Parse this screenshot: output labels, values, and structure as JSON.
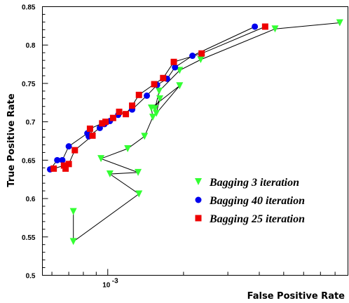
{
  "chart_data": {
    "type": "scatter",
    "xlabel": "False Positive Rate",
    "ylabel": "True Positive Rate",
    "xscale": "log",
    "xlim": [
      0.00055,
      0.009
    ],
    "ylim": [
      0.5,
      0.85
    ],
    "xticks": [
      {
        "value": 0.001,
        "label": "10"
      }
    ],
    "xtick_exponent": "-3",
    "yticks": [
      0.5,
      0.55,
      0.6,
      0.65,
      0.7,
      0.75,
      0.8,
      0.85
    ],
    "ytick_labels": [
      "0.5",
      "0.55",
      "0.6",
      "0.65",
      "0.7",
      "0.75",
      "0.8",
      "0.85"
    ],
    "grid": false,
    "legend_position": "bottom-right",
    "series": [
      {
        "name": "Bagging 3 iteration",
        "marker": "triangle-down",
        "color": "#33ff33",
        "connected": true,
        "points": [
          [
            0.00073,
            0.583
          ],
          [
            0.00073,
            0.544
          ],
          [
            0.00133,
            0.606
          ],
          [
            0.00102,
            0.632
          ],
          [
            0.00132,
            0.634
          ],
          [
            0.00094,
            0.652
          ],
          [
            0.0012,
            0.665
          ],
          [
            0.0014,
            0.681
          ],
          [
            0.00151,
            0.706
          ],
          [
            0.00149,
            0.718
          ],
          [
            0.00193,
            0.747
          ],
          [
            0.00156,
            0.711
          ],
          [
            0.00161,
            0.73
          ],
          [
            0.00154,
            0.717
          ],
          [
            0.0016,
            0.74
          ],
          [
            0.00193,
            0.767
          ],
          [
            0.00234,
            0.781
          ],
          [
            0.00462,
            0.821
          ],
          [
            0.00835,
            0.829
          ]
        ]
      },
      {
        "name": "Bagging 40 iteration",
        "marker": "circle",
        "color": "#0000ee",
        "connected": true,
        "points": [
          [
            0.00059,
            0.638
          ],
          [
            0.00063,
            0.65
          ],
          [
            0.00066,
            0.65
          ],
          [
            0.0007,
            0.668
          ],
          [
            0.00083,
            0.685
          ],
          [
            0.00084,
            0.681
          ],
          [
            0.00093,
            0.692
          ],
          [
            0.00097,
            0.697
          ],
          [
            0.00102,
            0.701
          ],
          [
            0.0011,
            0.709
          ],
          [
            0.00125,
            0.716
          ],
          [
            0.00143,
            0.734
          ],
          [
            0.00157,
            0.748
          ],
          [
            0.00172,
            0.756
          ],
          [
            0.00185,
            0.771
          ],
          [
            0.00217,
            0.786
          ],
          [
            0.00384,
            0.824
          ]
        ]
      },
      {
        "name": "Bagging 25 iteration",
        "marker": "square",
        "color": "#ee0000",
        "connected": true,
        "points": [
          [
            0.00061,
            0.639
          ],
          [
            0.00067,
            0.643
          ],
          [
            0.00068,
            0.639
          ],
          [
            0.0007,
            0.645
          ],
          [
            0.00074,
            0.663
          ],
          [
            0.00087,
            0.682
          ],
          [
            0.00085,
            0.691
          ],
          [
            0.00095,
            0.698
          ],
          [
            0.00098,
            0.7
          ],
          [
            0.00105,
            0.705
          ],
          [
            0.00111,
            0.713
          ],
          [
            0.00118,
            0.71
          ],
          [
            0.00125,
            0.721
          ],
          [
            0.00133,
            0.735
          ],
          [
            0.00153,
            0.749
          ],
          [
            0.00166,
            0.757
          ],
          [
            0.00183,
            0.778
          ],
          [
            0.00236,
            0.789
          ],
          [
            0.00422,
            0.824
          ]
        ]
      }
    ]
  }
}
